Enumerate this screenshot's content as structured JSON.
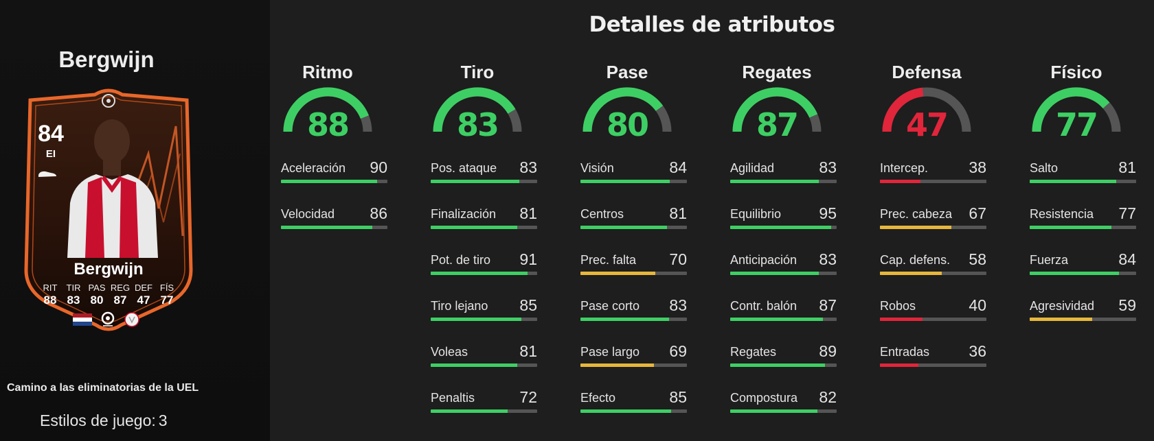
{
  "player": {
    "name": "Bergwijn",
    "card_name": "Bergwijn",
    "rating": "84",
    "position": "EI",
    "campaign": "Camino a las eliminatorias de la UEL",
    "playstyles_label": "Estilos de juego:",
    "playstyles_count": "3",
    "card_stats": [
      {
        "label": "RIT",
        "value": "88"
      },
      {
        "label": "TIR",
        "value": "83"
      },
      {
        "label": "PAS",
        "value": "80"
      },
      {
        "label": "REG",
        "value": "87"
      },
      {
        "label": "DEF",
        "value": "47"
      },
      {
        "label": "FÍS",
        "value": "77"
      }
    ]
  },
  "section_title": "Detalles de atributos",
  "colors": {
    "green": "#3ecf64",
    "yellow": "#e7b73c",
    "red": "#e1253b",
    "track": "#545554",
    "card_orange": "#e8672a"
  },
  "categories": [
    {
      "title": "Ritmo",
      "value": 88,
      "color": "green",
      "attributes": [
        {
          "label": "Aceleración",
          "value": 90,
          "color": "green"
        },
        {
          "label": "Velocidad",
          "value": 86,
          "color": "green"
        }
      ]
    },
    {
      "title": "Tiro",
      "value": 83,
      "color": "green",
      "attributes": [
        {
          "label": "Pos. ataque",
          "value": 83,
          "color": "green"
        },
        {
          "label": "Finalización",
          "value": 81,
          "color": "green"
        },
        {
          "label": "Pot. de tiro",
          "value": 91,
          "color": "green"
        },
        {
          "label": "Tiro lejano",
          "value": 85,
          "color": "green"
        },
        {
          "label": "Voleas",
          "value": 81,
          "color": "green"
        },
        {
          "label": "Penaltis",
          "value": 72,
          "color": "green"
        }
      ]
    },
    {
      "title": "Pase",
      "value": 80,
      "color": "green",
      "attributes": [
        {
          "label": "Visión",
          "value": 84,
          "color": "green"
        },
        {
          "label": "Centros",
          "value": 81,
          "color": "green"
        },
        {
          "label": "Prec. falta",
          "value": 70,
          "color": "yellow"
        },
        {
          "label": "Pase corto",
          "value": 83,
          "color": "green"
        },
        {
          "label": "Pase largo",
          "value": 69,
          "color": "yellow"
        },
        {
          "label": "Efecto",
          "value": 85,
          "color": "green"
        }
      ]
    },
    {
      "title": "Regates",
      "value": 87,
      "color": "green",
      "attributes": [
        {
          "label": "Agilidad",
          "value": 83,
          "color": "green"
        },
        {
          "label": "Equilibrio",
          "value": 95,
          "color": "green"
        },
        {
          "label": "Anticipación",
          "value": 83,
          "color": "green"
        },
        {
          "label": "Contr. balón",
          "value": 87,
          "color": "green"
        },
        {
          "label": "Regates",
          "value": 89,
          "color": "green"
        },
        {
          "label": "Compostura",
          "value": 82,
          "color": "green"
        }
      ]
    },
    {
      "title": "Defensa",
      "value": 47,
      "color": "red",
      "attributes": [
        {
          "label": "Intercep.",
          "value": 38,
          "color": "red"
        },
        {
          "label": "Prec. cabeza",
          "value": 67,
          "color": "yellow"
        },
        {
          "label": "Cap. defens.",
          "value": 58,
          "color": "yellow"
        },
        {
          "label": "Robos",
          "value": 40,
          "color": "red"
        },
        {
          "label": "Entradas",
          "value": 36,
          "color": "red"
        }
      ]
    },
    {
      "title": "Físico",
      "value": 77,
      "color": "green",
      "attributes": [
        {
          "label": "Salto",
          "value": 81,
          "color": "green"
        },
        {
          "label": "Resistencia",
          "value": 77,
          "color": "green"
        },
        {
          "label": "Fuerza",
          "value": 84,
          "color": "green"
        },
        {
          "label": "Agresividad",
          "value": 59,
          "color": "yellow"
        }
      ]
    }
  ]
}
